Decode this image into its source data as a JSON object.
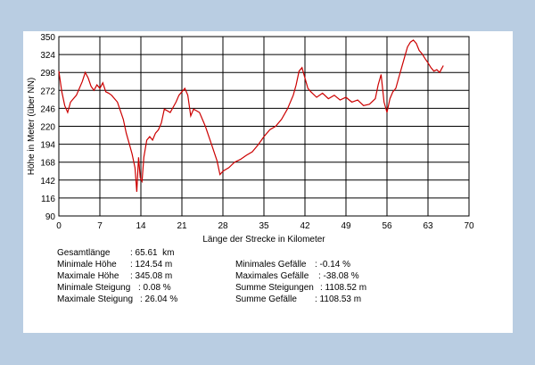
{
  "chart_data": {
    "type": "line",
    "xlabel": "Länge der Strecke in Kilometer",
    "ylabel": "Höhe in Meter (über NN)",
    "xlim": [
      0,
      70
    ],
    "ylim": [
      90,
      350
    ],
    "x_ticks": [
      "0",
      "7",
      "14",
      "21",
      "28",
      "35",
      "42",
      "49",
      "56",
      "63",
      "70"
    ],
    "y_ticks": [
      "350",
      "324",
      "298",
      "272",
      "246",
      "220",
      "194",
      "168",
      "142",
      "116",
      "90"
    ],
    "grid": true,
    "line_color": "#cc0000",
    "series": [
      {
        "x": [
          0,
          0.5,
          1,
          1.5,
          2,
          3,
          4,
          4.5,
          5,
          5.5,
          6,
          6.5,
          7,
          7.5,
          8,
          8.5,
          9,
          10,
          11,
          11.5,
          12,
          12.5,
          13,
          13.3,
          13.6,
          13.9,
          14.2,
          14.5,
          15,
          15.5,
          16,
          16.5,
          17,
          17.5,
          18,
          19,
          20,
          20.5,
          21,
          21.5,
          22,
          22.5,
          23,
          24,
          25,
          26,
          27,
          27.5,
          28,
          29,
          30,
          31,
          32,
          33,
          34,
          35,
          36,
          37,
          38,
          39,
          40,
          40.5,
          41,
          41.5,
          42,
          42.5,
          43,
          44,
          45,
          46,
          47,
          48,
          49,
          50,
          51,
          52,
          53,
          54,
          54.5,
          55,
          55.5,
          56,
          56.5,
          57,
          57.5,
          58,
          58.5,
          59,
          59.5,
          60,
          60.5,
          61,
          61.5,
          62,
          62.5,
          63,
          63.5,
          64,
          64.5,
          65,
          65.3,
          65.61
        ],
        "y": [
          300,
          270,
          250,
          240,
          255,
          265,
          285,
          298,
          290,
          278,
          272,
          280,
          275,
          283,
          270,
          268,
          265,
          255,
          230,
          210,
          195,
          180,
          160,
          125,
          175,
          145,
          140,
          175,
          200,
          205,
          200,
          210,
          215,
          225,
          245,
          240,
          255,
          265,
          270,
          275,
          265,
          235,
          245,
          240,
          220,
          195,
          170,
          150,
          155,
          160,
          168,
          172,
          178,
          183,
          193,
          205,
          215,
          220,
          230,
          245,
          265,
          280,
          300,
          305,
          290,
          275,
          270,
          262,
          268,
          260,
          265,
          258,
          262,
          255,
          258,
          250,
          252,
          260,
          280,
          295,
          255,
          240,
          260,
          270,
          275,
          290,
          305,
          320,
          335,
          342,
          345,
          340,
          330,
          325,
          318,
          312,
          305,
          300,
          302,
          298,
          303,
          308
        ]
      }
    ],
    "stats_left": [
      {
        "label": "Gesamtlänge",
        "value": ": 65.61  km"
      },
      {
        "label": "Minimale Höhe",
        "value": ": 124.54 m"
      },
      {
        "label": "Maximale Höhe",
        "value": ": 345.08 m"
      },
      {
        "label": "Minimale Steigung",
        "value": ": 0.08 %"
      },
      {
        "label": "Maximale Steigung",
        "value": ": 26.04 %"
      }
    ],
    "stats_right": [
      {
        "label": "Minimales Gefälle",
        "value": ": -0.14 %"
      },
      {
        "label": "Maximales Gefälle",
        "value": ": -38.08 %"
      },
      {
        "label": "Summe Steigungen",
        "value": ": 1108.52 m"
      },
      {
        "label": "Summe Gefälle",
        "value": ": 1108.53 m"
      }
    ]
  }
}
